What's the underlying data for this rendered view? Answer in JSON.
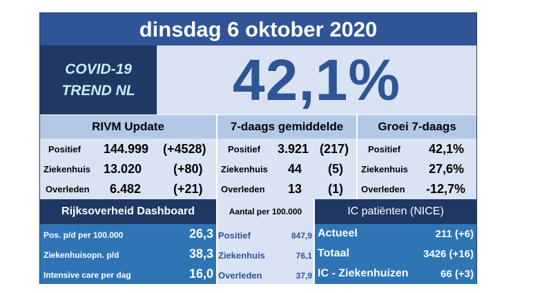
{
  "header": {
    "date": "dinsdag 6 oktober 2020"
  },
  "badge": {
    "line1": "COVID-19",
    "line2": "TREND NL"
  },
  "headline_value": "42,1%",
  "rivm": {
    "title": "RIVM Update",
    "rows": [
      {
        "label": "Positief",
        "value": "144.999",
        "delta": "(+4528)"
      },
      {
        "label": "Ziekenhuis",
        "value": "13.020",
        "delta": "(+80)"
      },
      {
        "label": "Overleden",
        "value": "6.482",
        "delta": "(+21)"
      }
    ]
  },
  "avg7": {
    "title": "7-daags gemiddelde",
    "rows": [
      {
        "label": "Positief",
        "value": "3.921",
        "delta": "(217)"
      },
      {
        "label": "Ziekenhuis",
        "value": "44",
        "delta": "(5)"
      },
      {
        "label": "Overleden",
        "value": "13",
        "delta": "(1)"
      }
    ]
  },
  "growth": {
    "title": "Groei 7-daags",
    "rows": [
      {
        "label": "Positief",
        "value": "42,1%"
      },
      {
        "label": "Ziekenhuis",
        "value": "27,6%"
      },
      {
        "label": "Overleden",
        "value": "-12,7%"
      }
    ]
  },
  "dashboard": {
    "title": "Rijksoverheid Dashboard",
    "rows": [
      {
        "label": "Pos. p/d per 100.000",
        "value": "26,3"
      },
      {
        "label": "Ziekenhuisopn.  p/d",
        "value": "38,3"
      },
      {
        "label": "Intensive care per dag",
        "value": "16,0"
      }
    ]
  },
  "per100k": {
    "title": "Aantal per 100.000",
    "rows": [
      {
        "label": "Positief",
        "value": "847,9"
      },
      {
        "label": "Ziekenhuis",
        "value": "76,1"
      },
      {
        "label": "Overleden",
        "value": "37,9"
      }
    ]
  },
  "ic": {
    "title": "IC patiënten (NICE)",
    "rows": [
      {
        "label": "Actueel",
        "value": "211 (+6)"
      },
      {
        "label": "Totaal",
        "value": "3426 (+16)"
      },
      {
        "label": "IC - Ziekenhuizen",
        "value": "66 (+3)"
      }
    ]
  },
  "colors": {
    "dark_navy": "#1f3864",
    "mid_blue": "#2f5597",
    "light_blue": "#b4c7e7",
    "pale_blue": "#dae3f3",
    "cell_blue": "#2e75b6"
  }
}
